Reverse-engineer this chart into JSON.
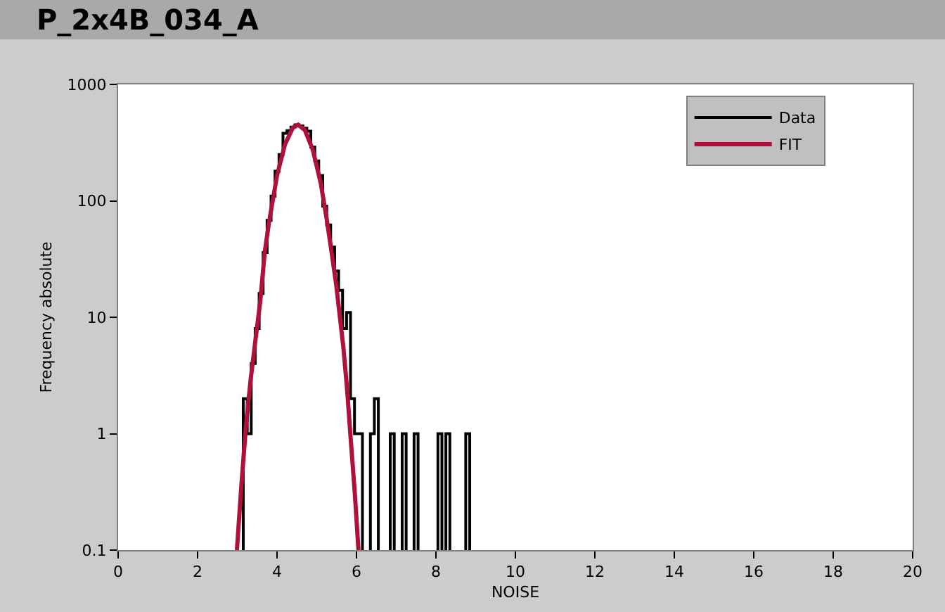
{
  "chart_data": {
    "type": "step",
    "title": "P_2x4B_034_A",
    "xlabel": "NOISE",
    "ylabel": "Frequency absolute",
    "xlim": [
      0,
      20
    ],
    "xticks": [
      0,
      2,
      4,
      6,
      8,
      10,
      12,
      14,
      16,
      18,
      20
    ],
    "ylim": [
      0.1,
      1000
    ],
    "yticks": [
      0.1,
      1,
      10,
      100,
      1000
    ],
    "log": "y",
    "grid": false,
    "legend": "top right",
    "series": [
      {
        "name": "Data",
        "color": "#000000",
        "x": [
          3.15,
          3.25,
          3.35,
          3.45,
          3.55,
          3.65,
          3.75,
          3.85,
          3.95,
          4.05,
          4.15,
          4.25,
          4.35,
          4.45,
          4.55,
          4.65,
          4.75,
          4.85,
          4.95,
          5.05,
          5.15,
          5.25,
          5.35,
          5.45,
          5.55,
          5.65,
          5.75,
          5.85,
          5.95,
          6.05,
          6.35,
          6.45,
          6.85,
          7.15,
          7.45,
          8.05,
          8.25,
          8.75
        ],
        "values": [
          2,
          1,
          4,
          8,
          16,
          36,
          68,
          110,
          180,
          250,
          380,
          400,
          430,
          450,
          440,
          420,
          397,
          290,
          220,
          165,
          90,
          62,
          40,
          25,
          17,
          8,
          11,
          2,
          1,
          1,
          1,
          2,
          1,
          1,
          1,
          1,
          1,
          1
        ]
      },
      {
        "name": "FIT",
        "type": "line",
        "color": "#b0103c",
        "x": [
          2.99,
          3.1,
          3.22,
          3.34,
          3.46,
          3.58,
          3.69,
          3.8,
          4.0,
          4.2,
          4.4,
          4.53,
          4.7,
          4.9,
          5.1,
          5.25,
          5.38,
          5.49,
          5.67,
          5.76,
          5.85,
          5.96,
          6.05
        ],
        "values": [
          0.1,
          0.35,
          1.2,
          3,
          6.5,
          14,
          36,
          66,
          165,
          305,
          425,
          450,
          405,
          275,
          142,
          70,
          35,
          19,
          5.5,
          2.5,
          0.95,
          0.3,
          0.1
        ]
      }
    ]
  }
}
